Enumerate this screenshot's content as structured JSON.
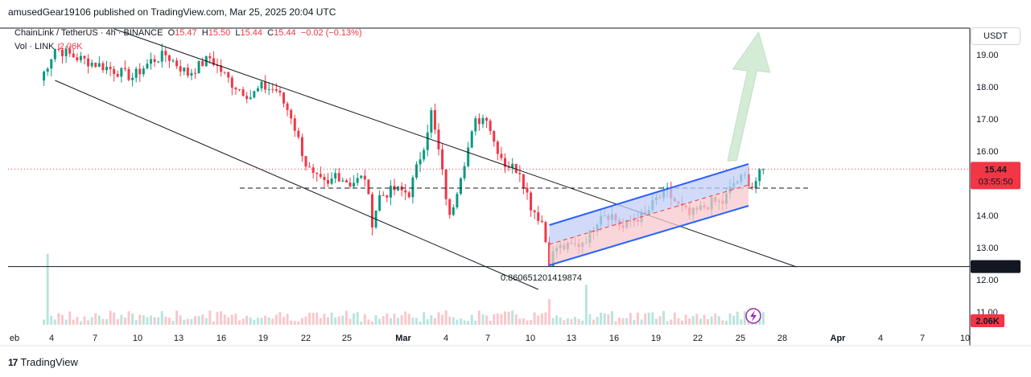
{
  "header": {
    "attribution": "amusedGear19106 published on TradingView.com, Mar 25, 2025 20:04 UTC",
    "symbol": "ChainLink / TetherUS · 4h · BINANCE",
    "open_label": "O",
    "open": "15.47",
    "high_label": "H",
    "high": "15.50",
    "low_label": "L",
    "low": "15.44",
    "close_label": "C",
    "close": "15.44",
    "change": "−0.02 (−0.13%)",
    "volume_label": "Vol · LINK",
    "volume_value": "2.06K"
  },
  "currency_button": "USDT",
  "brand": {
    "logo_text": "17",
    "name": "TradingView"
  },
  "colors": {
    "up": "#089981",
    "down": "#f23645",
    "channel_line": "#2962ff",
    "channel_fill_top": "#c2cdf7",
    "channel_fill_bottom": "#f7c8cd",
    "arrow": "#cde8cf",
    "price_label": "#f23645",
    "support_label": "#131722"
  },
  "chart_data": {
    "type": "candlestick",
    "timeframe": "4h",
    "ylim": [
      10.6,
      19.8
    ],
    "y_ticks": [
      "19.00",
      "18.00",
      "17.00",
      "16.00",
      "15.00",
      "14.00",
      "13.00",
      "12.00",
      "11.00"
    ],
    "x_ticks": [
      "eb",
      "4",
      "7",
      "10",
      "13",
      "16",
      "19",
      "22",
      "25",
      "Mar",
      "4",
      "7",
      "10",
      "13",
      "16",
      "19",
      "22",
      "25",
      "28",
      "Apr",
      "4",
      "7",
      "10"
    ],
    "price_path": [
      [
        0,
        18.2
      ],
      [
        4,
        19.2
      ],
      [
        10,
        18.9
      ],
      [
        18,
        18.6
      ],
      [
        25,
        18.3
      ],
      [
        30,
        18.8
      ],
      [
        34,
        19.0
      ],
      [
        40,
        18.4
      ],
      [
        46,
        18.9
      ],
      [
        52,
        18.1
      ],
      [
        57,
        17.7
      ],
      [
        60,
        18.0
      ],
      [
        64,
        17.9
      ],
      [
        68,
        17.1
      ],
      [
        72,
        15.6
      ],
      [
        74,
        15.2
      ],
      [
        78,
        14.9
      ],
      [
        80,
        15.3
      ],
      [
        84,
        15.0
      ],
      [
        88,
        15.2
      ],
      [
        90,
        13.8
      ],
      [
        92,
        14.6
      ],
      [
        96,
        14.8
      ],
      [
        100,
        14.7
      ],
      [
        104,
        16.2
      ],
      [
        106,
        17.2
      ],
      [
        108,
        16.0
      ],
      [
        111,
        13.9
      ],
      [
        114,
        15.3
      ],
      [
        118,
        16.9
      ],
      [
        121,
        17.1
      ],
      [
        123,
        16.3
      ],
      [
        126,
        15.6
      ],
      [
        130,
        15.4
      ],
      [
        133,
        14.3
      ],
      [
        136,
        13.8
      ],
      [
        138,
        12.6
      ],
      [
        140,
        13.0
      ],
      [
        143,
        13.0
      ],
      [
        146,
        13.1
      ],
      [
        149,
        13.4
      ],
      [
        152,
        14.1
      ],
      [
        155,
        14.0
      ],
      [
        158,
        13.6
      ],
      [
        161,
        13.9
      ],
      [
        164,
        14.0
      ],
      [
        167,
        14.5
      ],
      [
        170,
        14.7
      ],
      [
        173,
        14.3
      ],
      [
        176,
        14.0
      ],
      [
        179,
        14.2
      ],
      [
        182,
        14.4
      ],
      [
        185,
        14.4
      ],
      [
        188,
        15.0
      ],
      [
        191,
        15.2
      ],
      [
        193,
        14.9
      ],
      [
        196,
        15.44
      ]
    ],
    "volume_max": "2.06K",
    "last_price": "15.44",
    "countdown": "03:55:50",
    "support_level": "12.41",
    "fib_annotation": "0.860651201419874",
    "dashed_level": 14.85,
    "descending_channel": {
      "upper": [
        [
          20,
          19.8
        ],
        [
          205,
          12.4
        ]
      ],
      "lower": [
        [
          4,
          18.2
        ],
        [
          135,
          11.7
        ]
      ]
    },
    "ascending_channel": {
      "upper": [
        [
          138,
          13.7
        ],
        [
          192,
          15.6
        ]
      ],
      "lower": [
        [
          138,
          12.45
        ],
        [
          192,
          14.3
        ]
      ],
      "mid": [
        [
          138,
          13.1
        ],
        [
          192,
          14.95
        ]
      ]
    },
    "projection_arrow": {
      "from": [
        187,
        15.7
      ],
      "to": [
        193,
        19.7
      ]
    }
  }
}
